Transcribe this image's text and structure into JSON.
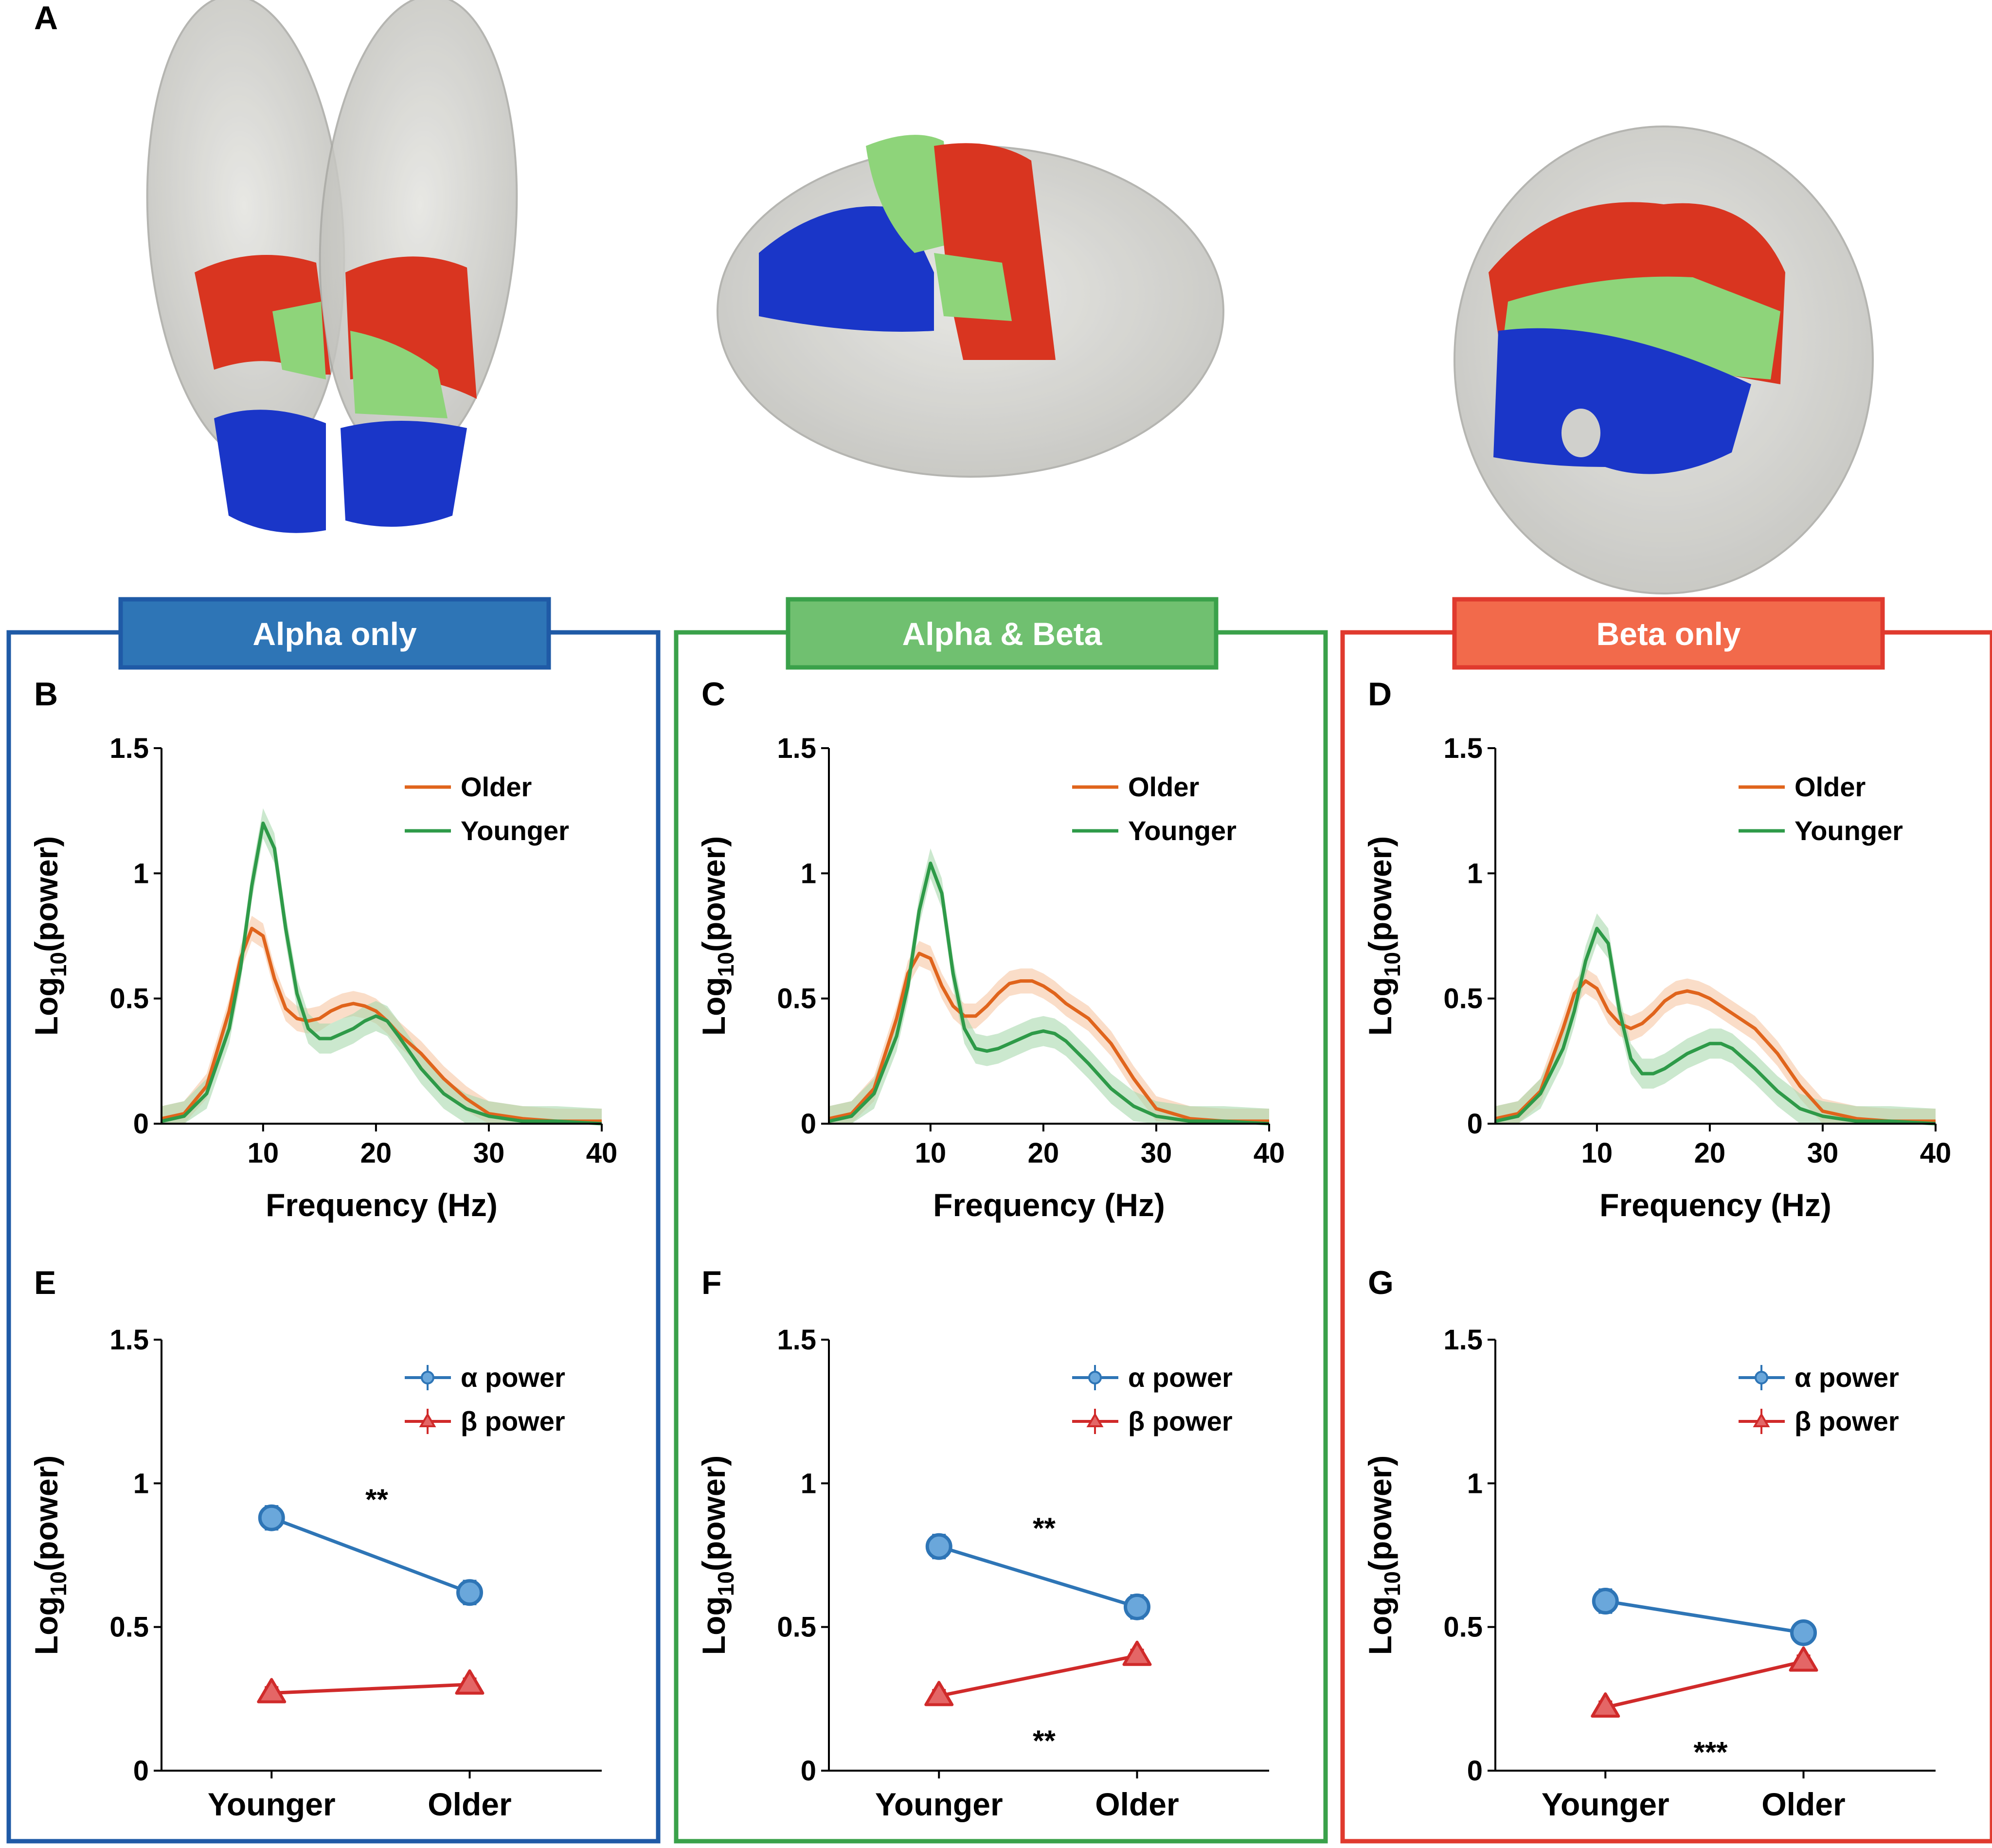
{
  "figure_labels": {
    "A": "A",
    "B": "B",
    "C": "C",
    "D": "D",
    "E": "E",
    "F": "F",
    "G": "G"
  },
  "groups": [
    {
      "title": "Alpha only",
      "color": "#2e75b6",
      "border": "#1f5aa6"
    },
    {
      "title": "Alpha & Beta",
      "color": "#70c070",
      "border": "#3aa14a"
    },
    {
      "title": "Beta only",
      "color": "#f26a4b",
      "border": "#e03a2e"
    }
  ],
  "legend_spectrum": {
    "older": "Older",
    "younger": "Younger"
  },
  "legend_dots": {
    "alpha": "α power",
    "beta": "β power"
  },
  "colors": {
    "older": "#e0641c",
    "older_band": "#f6c7a4",
    "younger": "#2e9a48",
    "younger_band": "#a8d9ae",
    "alpha": "#2e75b6",
    "beta": "#d02a2a",
    "brain": "#c9c9c4"
  },
  "chart_data": [
    {
      "panel": "B",
      "type": "line",
      "xlabel": "Frequency (Hz)",
      "ylabel_base": "Log",
      "ylabel_sub": "10",
      "ylabel_rest": "(power)",
      "xlim": [
        1,
        40
      ],
      "ylim": [
        0,
        1.5
      ],
      "xticks": [
        10,
        20,
        30,
        40
      ],
      "yticks": [
        0,
        0.5,
        1,
        1.5
      ],
      "ytick_labels": [
        "0",
        "0.5",
        "1",
        "1.5"
      ],
      "series": [
        {
          "name": "Older",
          "band": 0.05,
          "x": [
            1,
            3,
            5,
            7,
            8,
            9,
            10,
            11,
            12,
            13,
            14,
            15,
            16,
            17,
            18,
            19,
            20,
            21,
            22,
            24,
            26,
            28,
            30,
            33,
            36,
            40
          ],
          "y": [
            0.02,
            0.04,
            0.15,
            0.45,
            0.66,
            0.78,
            0.75,
            0.58,
            0.46,
            0.42,
            0.41,
            0.42,
            0.45,
            0.47,
            0.48,
            0.47,
            0.45,
            0.41,
            0.36,
            0.28,
            0.18,
            0.1,
            0.04,
            0.02,
            0.01,
            0.01
          ]
        },
        {
          "name": "Younger",
          "band": 0.06,
          "x": [
            1,
            3,
            5,
            7,
            8,
            9,
            10,
            11,
            12,
            13,
            14,
            15,
            16,
            17,
            18,
            19,
            20,
            21,
            22,
            24,
            26,
            28,
            30,
            33,
            36,
            40
          ],
          "y": [
            0.01,
            0.03,
            0.12,
            0.38,
            0.62,
            0.95,
            1.2,
            1.1,
            0.78,
            0.52,
            0.38,
            0.34,
            0.34,
            0.36,
            0.38,
            0.41,
            0.43,
            0.41,
            0.35,
            0.22,
            0.12,
            0.06,
            0.03,
            0.01,
            0.01,
            0.0
          ]
        }
      ]
    },
    {
      "panel": "C",
      "type": "line",
      "xlabel": "Frequency (Hz)",
      "ylabel_base": "Log",
      "ylabel_sub": "10",
      "ylabel_rest": "(power)",
      "xlim": [
        1,
        40
      ],
      "ylim": [
        0,
        1.5
      ],
      "xticks": [
        10,
        20,
        30,
        40
      ],
      "yticks": [
        0,
        0.5,
        1,
        1.5
      ],
      "ytick_labels": [
        "0",
        "0.5",
        "1",
        "1.5"
      ],
      "series": [
        {
          "name": "Older",
          "band": 0.05,
          "x": [
            1,
            3,
            5,
            7,
            8,
            9,
            10,
            11,
            12,
            13,
            14,
            15,
            16,
            17,
            18,
            19,
            20,
            21,
            22,
            24,
            26,
            28,
            30,
            33,
            36,
            40
          ],
          "y": [
            0.02,
            0.04,
            0.14,
            0.42,
            0.6,
            0.68,
            0.66,
            0.55,
            0.47,
            0.43,
            0.43,
            0.47,
            0.52,
            0.56,
            0.57,
            0.57,
            0.55,
            0.52,
            0.48,
            0.42,
            0.32,
            0.18,
            0.06,
            0.02,
            0.01,
            0.01
          ]
        },
        {
          "name": "Younger",
          "band": 0.06,
          "x": [
            1,
            3,
            5,
            7,
            8,
            9,
            10,
            11,
            12,
            13,
            14,
            15,
            16,
            17,
            18,
            19,
            20,
            21,
            22,
            24,
            26,
            28,
            30,
            33,
            36,
            40
          ],
          "y": [
            0.01,
            0.03,
            0.12,
            0.35,
            0.55,
            0.85,
            1.04,
            0.92,
            0.6,
            0.38,
            0.3,
            0.29,
            0.3,
            0.32,
            0.34,
            0.36,
            0.37,
            0.36,
            0.33,
            0.24,
            0.14,
            0.07,
            0.03,
            0.01,
            0.01,
            0.0
          ]
        }
      ]
    },
    {
      "panel": "D",
      "type": "line",
      "xlabel": "Frequency (Hz)",
      "ylabel_base": "Log",
      "ylabel_sub": "10",
      "ylabel_rest": "(power)",
      "xlim": [
        1,
        40
      ],
      "ylim": [
        0,
        1.5
      ],
      "xticks": [
        10,
        20,
        30,
        40
      ],
      "yticks": [
        0,
        0.5,
        1,
        1.5
      ],
      "ytick_labels": [
        "0",
        "0.5",
        "1",
        "1.5"
      ],
      "series": [
        {
          "name": "Older",
          "band": 0.05,
          "x": [
            1,
            3,
            5,
            7,
            8,
            9,
            10,
            11,
            12,
            13,
            14,
            15,
            16,
            17,
            18,
            19,
            20,
            21,
            22,
            24,
            26,
            28,
            30,
            33,
            36,
            40
          ],
          "y": [
            0.02,
            0.04,
            0.13,
            0.38,
            0.52,
            0.57,
            0.54,
            0.45,
            0.4,
            0.38,
            0.4,
            0.44,
            0.49,
            0.52,
            0.53,
            0.52,
            0.5,
            0.47,
            0.44,
            0.38,
            0.28,
            0.15,
            0.05,
            0.02,
            0.01,
            0.01
          ]
        },
        {
          "name": "Younger",
          "band": 0.06,
          "x": [
            1,
            3,
            5,
            7,
            8,
            9,
            10,
            11,
            12,
            13,
            14,
            15,
            16,
            17,
            18,
            19,
            20,
            21,
            22,
            24,
            26,
            28,
            30,
            33,
            36,
            40
          ],
          "y": [
            0.01,
            0.03,
            0.12,
            0.3,
            0.45,
            0.65,
            0.78,
            0.72,
            0.45,
            0.26,
            0.2,
            0.2,
            0.22,
            0.25,
            0.28,
            0.3,
            0.32,
            0.32,
            0.3,
            0.22,
            0.13,
            0.06,
            0.03,
            0.01,
            0.01,
            0.0
          ]
        }
      ]
    },
    {
      "panel": "E",
      "type": "line",
      "ylabel_base": "Log",
      "ylabel_sub": "10",
      "ylabel_rest": "(power)",
      "categories": [
        "Younger",
        "Older"
      ],
      "ylim": [
        0,
        1.5
      ],
      "yticks": [
        0,
        0.5,
        1,
        1.5
      ],
      "ytick_labels": [
        "0",
        "0.5",
        "1",
        "1.5"
      ],
      "series": [
        {
          "name": "α power",
          "values": [
            0.88,
            0.62
          ],
          "error": [
            0.04,
            0.04
          ]
        },
        {
          "name": "β power",
          "values": [
            0.27,
            0.3
          ],
          "error": [
            0.02,
            0.02
          ]
        }
      ],
      "annotations": [
        {
          "text": "**",
          "x": 0.5,
          "y": 0.96
        }
      ]
    },
    {
      "panel": "F",
      "type": "line",
      "ylabel_base": "Log",
      "ylabel_sub": "10",
      "ylabel_rest": "(power)",
      "categories": [
        "Younger",
        "Older"
      ],
      "ylim": [
        0,
        1.5
      ],
      "yticks": [
        0,
        0.5,
        1,
        1.5
      ],
      "ytick_labels": [
        "0",
        "0.5",
        "1",
        "1.5"
      ],
      "series": [
        {
          "name": "α power",
          "values": [
            0.78,
            0.57
          ],
          "error": [
            0.04,
            0.04
          ]
        },
        {
          "name": "β power",
          "values": [
            0.26,
            0.4
          ],
          "error": [
            0.02,
            0.02
          ]
        }
      ],
      "annotations": [
        {
          "text": "**",
          "x": 0.5,
          "y": 0.86
        },
        {
          "text": "**",
          "x": 0.5,
          "y": 0.12
        }
      ]
    },
    {
      "panel": "G",
      "type": "line",
      "ylabel_base": "Log",
      "ylabel_sub": "10",
      "ylabel_rest": "(power)",
      "categories": [
        "Younger",
        "Older"
      ],
      "ylim": [
        0,
        1.5
      ],
      "yticks": [
        0,
        0.5,
        1,
        1.5
      ],
      "ytick_labels": [
        "0",
        "0.5",
        "1",
        "1.5"
      ],
      "series": [
        {
          "name": "α power",
          "values": [
            0.59,
            0.48
          ],
          "error": [
            0.04,
            0.03
          ]
        },
        {
          "name": "β power",
          "values": [
            0.22,
            0.38
          ],
          "error": [
            0.02,
            0.02
          ]
        }
      ],
      "annotations": [
        {
          "text": "***",
          "x": 0.5,
          "y": 0.08
        }
      ]
    }
  ]
}
